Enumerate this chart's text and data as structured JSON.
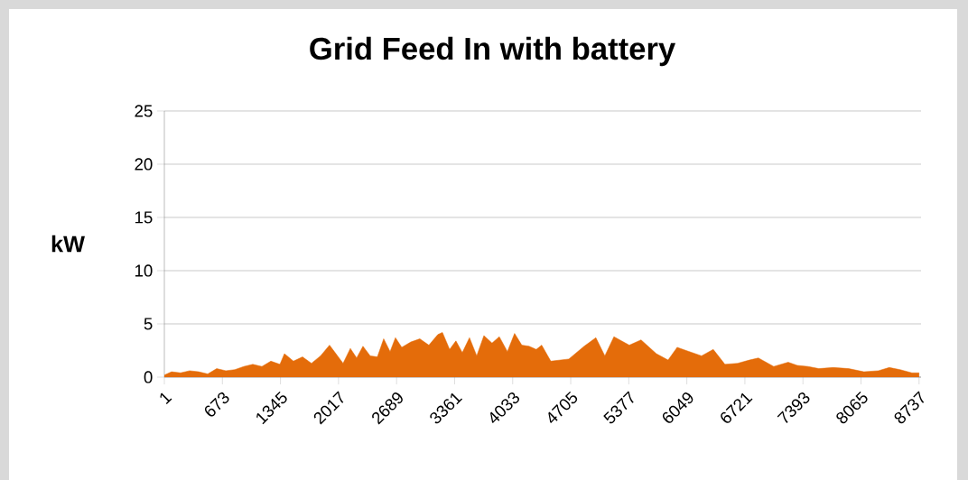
{
  "chart_data": {
    "type": "area",
    "title": "Grid Feed In with battery",
    "ylabel": "kW",
    "color": "#e46c0a",
    "x": [
      1,
      85,
      189,
      294,
      398,
      503,
      607,
      712,
      816,
      921,
      1025,
      1130,
      1234,
      1339,
      1391,
      1495,
      1600,
      1704,
      1809,
      1913,
      1987,
      2070,
      2154,
      2227,
      2300,
      2384,
      2467,
      2540,
      2614,
      2676,
      2749,
      2854,
      2958,
      3063,
      3167,
      3220,
      3303,
      3376,
      3450,
      3533,
      3617,
      3700,
      3794,
      3878,
      3972,
      4055,
      4139,
      4223,
      4306,
      4369,
      4474,
      4683,
      4860,
      4996,
      5100,
      5205,
      5383,
      5519,
      5696,
      5832,
      5937,
      6041,
      6219,
      6355,
      6490,
      6637,
      6773,
      6877,
      7055,
      7222,
      7327,
      7452,
      7577,
      7744,
      7922,
      8099,
      8266,
      8392,
      8518,
      8654,
      8737
    ],
    "values": [
      0.2,
      0.5,
      0.4,
      0.6,
      0.5,
      0.3,
      0.8,
      0.6,
      0.7,
      1.0,
      1.2,
      1.0,
      1.5,
      1.2,
      2.2,
      1.5,
      1.9,
      1.3,
      2.0,
      3.0,
      2.2,
      1.3,
      2.7,
      1.8,
      2.9,
      2.0,
      1.9,
      3.6,
      2.4,
      3.7,
      2.8,
      3.3,
      3.6,
      3.0,
      4.0,
      4.2,
      2.6,
      3.4,
      2.3,
      3.7,
      2.0,
      3.9,
      3.2,
      3.8,
      2.4,
      4.1,
      3.0,
      2.9,
      2.6,
      3.0,
      1.5,
      1.7,
      2.9,
      3.7,
      2.0,
      3.8,
      3.0,
      3.5,
      2.2,
      1.6,
      2.8,
      2.5,
      2.0,
      2.6,
      1.2,
      1.3,
      1.6,
      1.8,
      1.0,
      1.4,
      1.1,
      1.0,
      0.8,
      0.9,
      0.8,
      0.5,
      0.6,
      0.9,
      0.7,
      0.4,
      0.4
    ],
    "xlim": [
      1,
      8760
    ],
    "xticks": [
      1,
      673,
      1345,
      2017,
      2689,
      3361,
      4033,
      4705,
      5377,
      6049,
      6721,
      7393,
      8065,
      8737
    ],
    "ylim": [
      0,
      25
    ],
    "yticks": [
      0,
      5,
      10,
      15,
      20,
      25
    ],
    "grid": "y"
  }
}
